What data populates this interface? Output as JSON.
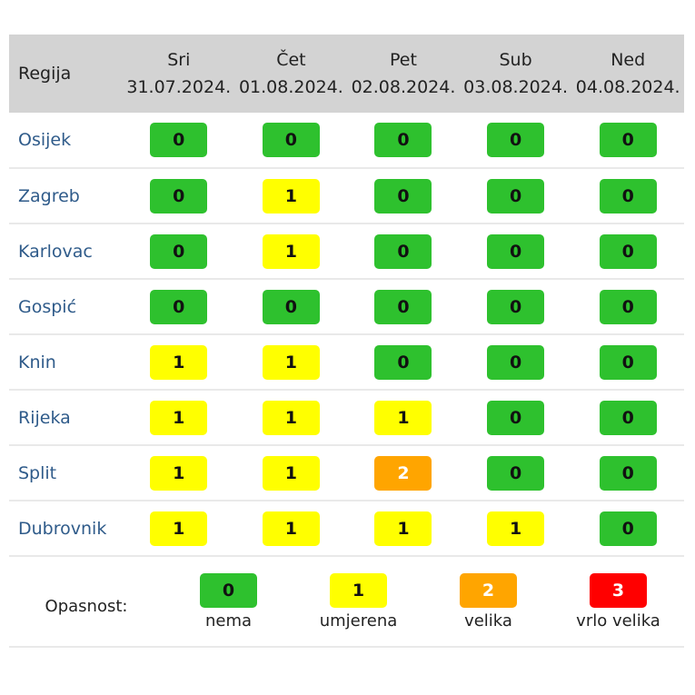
{
  "header": {
    "region_label": "Regija",
    "days": [
      {
        "name": "Sri",
        "date": "31.07.2024."
      },
      {
        "name": "Čet",
        "date": "01.08.2024."
      },
      {
        "name": "Pet",
        "date": "02.08.2024."
      },
      {
        "name": "Sub",
        "date": "03.08.2024."
      },
      {
        "name": "Ned",
        "date": "04.08.2024."
      }
    ]
  },
  "level_colors": {
    "0": "#2ec12e",
    "1": "#ffff00",
    "2": "#ffa500",
    "3": "#ff0000"
  },
  "rows": [
    {
      "region": "Osijek",
      "levels": [
        "0",
        "0",
        "0",
        "0",
        "0"
      ]
    },
    {
      "region": "Zagreb",
      "levels": [
        "0",
        "1",
        "0",
        "0",
        "0"
      ]
    },
    {
      "region": "Karlovac",
      "levels": [
        "0",
        "1",
        "0",
        "0",
        "0"
      ]
    },
    {
      "region": "Gospić",
      "levels": [
        "0",
        "0",
        "0",
        "0",
        "0"
      ]
    },
    {
      "region": "Knin",
      "levels": [
        "1",
        "1",
        "0",
        "0",
        "0"
      ]
    },
    {
      "region": "Rijeka",
      "levels": [
        "1",
        "1",
        "1",
        "0",
        "0"
      ]
    },
    {
      "region": "Split",
      "levels": [
        "1",
        "1",
        "2",
        "0",
        "0"
      ]
    },
    {
      "region": "Dubrovnik",
      "levels": [
        "1",
        "1",
        "1",
        "1",
        "0"
      ]
    }
  ],
  "legend": {
    "label": "Opasnost:",
    "items": [
      {
        "level": "0",
        "text": "nema"
      },
      {
        "level": "1",
        "text": "umjerena"
      },
      {
        "level": "2",
        "text": "velika"
      },
      {
        "level": "3",
        "text": "vrlo velika"
      }
    ]
  }
}
